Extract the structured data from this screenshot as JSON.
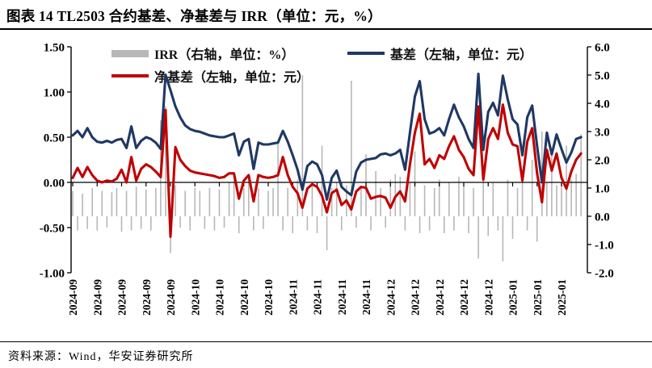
{
  "title": "图表 14 TL2503 合约基差、净基差与 IRR（单位：元，%）",
  "footer": "资料来源：Wind，华安证券研究所",
  "legend": {
    "irr": "IRR（右轴，单位：%）",
    "basis": "基差（左轴，单位：元）",
    "net_basis": "净基差（左轴，单位：元）"
  },
  "colors": {
    "basis_line": "#1f3864",
    "net_basis_line": "#c00000",
    "irr_bar": "#b7b7b7",
    "axis": "#000000"
  },
  "chart_data": {
    "type": "bar+line combo, dual axis",
    "title": "TL2503 合约基差、净基差与 IRR",
    "grid": "off",
    "legend_position": "top",
    "x_labels": [
      "2024-09",
      "2024-09",
      "2024-09",
      "2024-09",
      "2024-09",
      "2024-10",
      "2024-10",
      "2024-10",
      "2024-10",
      "2024-11",
      "2024-11",
      "2024-11",
      "2024-11",
      "2024-12",
      "2024-12",
      "2024-12",
      "2024-12",
      "2024-12",
      "2025-01",
      "2025-01",
      "2025-01"
    ],
    "x_label_every_n_points": 5,
    "left_axis": {
      "title": "元",
      "min": -1.0,
      "max": 1.5,
      "ticks": [
        "1.50",
        "1.00",
        "0.50",
        "0.00",
        "-0.50",
        "-1.00"
      ]
    },
    "right_axis": {
      "title": "%",
      "min": -2.0,
      "max": 6.0,
      "ticks": [
        "6.0",
        "5.0",
        "4.0",
        "3.0",
        "2.0",
        "1.0",
        "0.0",
        "-1.0",
        "-2.0"
      ]
    },
    "series": [
      {
        "name": "IRR（右轴，单位：%）",
        "type": "bar",
        "axis": "right",
        "color": "#b7b7b7",
        "values": [
          0.9,
          -0.5,
          0.8,
          -0.45,
          1.0,
          -0.5,
          0.9,
          -0.4,
          0.85,
          1.0,
          -0.55,
          0.9,
          -0.5,
          1.05,
          -0.45,
          0.95,
          -0.5,
          1.0,
          3.4,
          3.9,
          -1.3,
          1.1,
          -0.4,
          0.9,
          -0.5,
          1.0,
          0.9,
          -0.45,
          1.0,
          -0.5,
          0.95,
          -0.4,
          1.2,
          1.5,
          -0.6,
          1.0,
          1.4,
          -0.5,
          1.0,
          -0.45,
          0.9,
          1.0,
          2.6,
          -0.5,
          1.0,
          -0.6,
          1.3,
          5.0,
          -0.5,
          1.1,
          -0.6,
          2.5,
          -1.2,
          1.0,
          1.2,
          -0.5,
          1.1,
          4.8,
          -0.4,
          1.0,
          2.2,
          -0.5,
          1.6,
          1.0,
          -0.4,
          1.3,
          1.5,
          1.4,
          -0.5,
          1.2,
          2.3,
          -0.6,
          1.1,
          -0.5,
          1.0,
          1.3,
          -0.6,
          1.2,
          -0.5,
          1.4,
          1.1,
          -0.6,
          1.0,
          -1.5,
          1.8,
          -0.7,
          1.2,
          -0.5,
          -1.6,
          1.3,
          -0.8,
          1.0,
          1.6,
          -0.5,
          2.0,
          -0.9,
          3.0,
          1.2,
          2.2,
          1.1,
          1.2,
          2.5,
          1.3,
          1.5,
          2.9
        ]
      },
      {
        "name": "基差（左轴，单位：元）",
        "type": "line",
        "axis": "left",
        "color": "#1f3864",
        "values": [
          0.52,
          0.57,
          0.5,
          0.6,
          0.5,
          0.45,
          0.44,
          0.46,
          0.44,
          0.47,
          0.48,
          0.38,
          0.62,
          0.38,
          0.46,
          0.5,
          0.48,
          0.44,
          0.37,
          1.19,
          1.02,
          0.84,
          0.72,
          0.63,
          0.59,
          0.57,
          0.56,
          0.54,
          0.52,
          0.51,
          0.5,
          0.5,
          0.52,
          0.54,
          0.3,
          0.45,
          0.48,
          0.15,
          0.44,
          0.42,
          0.42,
          0.43,
          0.44,
          0.57,
          0.45,
          0.3,
          0.14,
          -0.08,
          0.18,
          0.23,
          0.2,
          0.08,
          -0.19,
          0.05,
          0.13,
          -0.05,
          -0.1,
          -0.14,
          0.12,
          0.22,
          0.25,
          0.26,
          0.27,
          0.31,
          0.32,
          0.3,
          0.32,
          0.36,
          0.14,
          0.55,
          0.95,
          1.12,
          0.7,
          0.54,
          0.56,
          0.6,
          0.52,
          0.7,
          0.86,
          0.72,
          0.62,
          0.48,
          0.38,
          1.2,
          0.36,
          0.78,
          0.88,
          0.74,
          1.18,
          0.92,
          0.7,
          0.64,
          0.3,
          0.72,
          0.85,
          0.4,
          0.0,
          0.55,
          0.31,
          0.53,
          0.37,
          0.22,
          0.33,
          0.48,
          0.5
        ]
      },
      {
        "name": "净基差（左轴，单位：元）",
        "type": "line",
        "axis": "left",
        "color": "#c00000",
        "values": [
          0.05,
          0.16,
          0.06,
          0.17,
          0.08,
          0.02,
          0.0,
          0.02,
          0.01,
          0.04,
          0.14,
          0.0,
          0.28,
          0.02,
          0.15,
          0.2,
          0.17,
          0.12,
          0.06,
          0.8,
          -0.6,
          0.39,
          0.25,
          0.18,
          0.13,
          0.11,
          0.1,
          0.09,
          0.08,
          0.07,
          0.05,
          0.06,
          0.1,
          0.1,
          -0.18,
          0.02,
          0.08,
          -0.21,
          0.08,
          0.06,
          0.05,
          0.06,
          0.08,
          0.28,
          0.08,
          -0.05,
          -0.12,
          -0.28,
          -0.07,
          -0.02,
          -0.05,
          -0.15,
          -0.33,
          -0.12,
          -0.08,
          -0.25,
          -0.2,
          -0.3,
          -0.1,
          -0.05,
          -0.06,
          -0.18,
          -0.16,
          -0.15,
          -0.17,
          -0.28,
          -0.16,
          -0.1,
          -0.21,
          0.2,
          0.55,
          0.76,
          0.2,
          0.26,
          0.16,
          0.3,
          0.26,
          0.4,
          0.51,
          0.36,
          0.28,
          0.15,
          0.08,
          0.84,
          0.03,
          0.48,
          0.6,
          0.48,
          0.86,
          0.55,
          0.42,
          0.4,
          0.02,
          0.45,
          0.6,
          0.1,
          -0.22,
          0.36,
          0.13,
          0.32,
          0.05,
          -0.07,
          0.12,
          0.25,
          0.32
        ]
      }
    ]
  }
}
